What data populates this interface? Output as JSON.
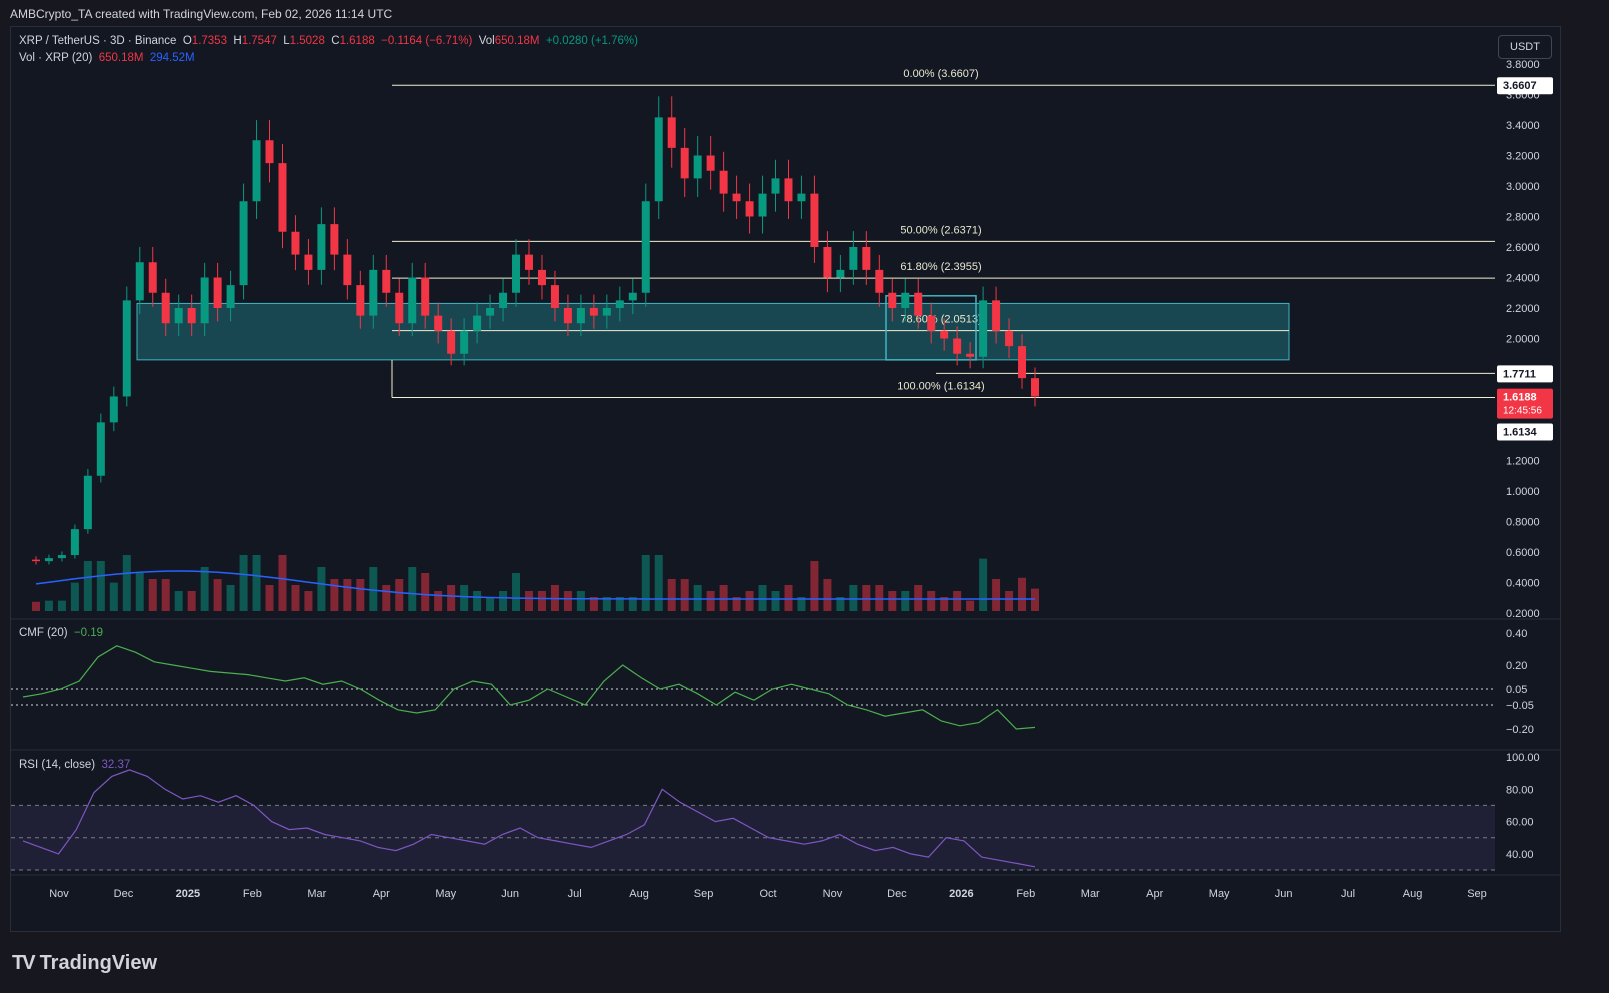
{
  "header": {
    "attribution": "AMBCrypto_TA created with TradingView.com, Feb 02, 2026 11:14 UTC"
  },
  "legend": {
    "symbol": "XRP / TetherUS · 3D · Binance",
    "o_label": "O",
    "o": "1.7353",
    "h_label": "H",
    "h": "1.7547",
    "l_label": "L",
    "l": "1.5028",
    "c_label": "C",
    "c": "1.6188",
    "change": "−0.1164 (−6.71%)",
    "vol_label": "Vol",
    "vol": "650.18M",
    "vol_change": "+0.0280 (+1.76%)",
    "vol_row_label": "Vol · XRP (20)",
    "vol_row_v1": "650.18M",
    "vol_row_v2": "294.52M",
    "cmf_label": "CMF (20)",
    "cmf_value": "−0.19",
    "rsi_label": "RSI (14, close)",
    "rsi_value": "32.37"
  },
  "currency_button": "USDT",
  "brand": {
    "name": "TradingView"
  },
  "colors": {
    "up": "#089981",
    "down": "#f23645",
    "fib": "#f0f0d0",
    "zone": "#1f6f78",
    "vol_ma": "#2962ff",
    "cmf": "#4caf50",
    "rsi": "#7e57c2"
  },
  "chart_data": [
    {
      "type": "candlestick",
      "title": "XRP / TetherUS · 3D · Binance",
      "price_axis": {
        "ticks": [
          "3.8000",
          "3.6000",
          "3.4000",
          "3.2000",
          "3.0000",
          "2.8000",
          "2.6000",
          "2.4000",
          "2.2000",
          "2.0000",
          "1.8000",
          "1.6000",
          "1.4000",
          "1.2000",
          "1.0000",
          "0.8000",
          "0.6000",
          "0.4000",
          "0.2000"
        ],
        "ylim": [
          0.2,
          3.8
        ]
      },
      "time_axis": [
        "Nov",
        "Dec",
        "2025",
        "Feb",
        "Mar",
        "Apr",
        "May",
        "Jun",
        "Jul",
        "Aug",
        "Sep",
        "Oct",
        "Nov",
        "Dec",
        "2026",
        "Feb",
        "Mar",
        "Apr",
        "May",
        "Jun",
        "Jul",
        "Aug",
        "Sep"
      ],
      "fib_levels": [
        {
          "label": "0.00% (3.6607)",
          "value": 3.6607
        },
        {
          "label": "50.00% (2.6371)",
          "value": 2.6371
        },
        {
          "label": "61.80% (2.3955)",
          "value": 2.3955
        },
        {
          "label": "78.60% (2.0513)",
          "value": 2.0513
        },
        {
          "label": "100.00% (1.6134)",
          "value": 1.6134
        }
      ],
      "zone": {
        "top": 2.23,
        "bottom": 1.86
      },
      "price_tags": {
        "top": "3.6607",
        "level": "1.7711",
        "current": "1.6188",
        "countdown": "12:45:56",
        "low": "1.6134"
      },
      "close_path": [
        [
          "Nov",
          0.55
        ],
        [
          "Nov",
          0.54
        ],
        [
          "Nov",
          0.56
        ],
        [
          "Nov",
          0.58
        ],
        [
          "Nov",
          0.75
        ],
        [
          "Nov",
          1.1
        ],
        [
          "Nov",
          1.45
        ],
        [
          "Dec",
          1.62
        ],
        [
          "Dec",
          2.25
        ],
        [
          "Dec",
          2.5
        ],
        [
          "Dec",
          2.3
        ],
        [
          "Dec",
          2.1
        ],
        [
          "Dec",
          2.2
        ],
        [
          "2025",
          2.1
        ],
        [
          "2025",
          2.4
        ],
        [
          "2025",
          2.2
        ],
        [
          "2025",
          2.35
        ],
        [
          "2025",
          2.9
        ],
        [
          "2025",
          3.3
        ],
        [
          "2025",
          3.15
        ],
        [
          "Feb",
          2.7
        ],
        [
          "Feb",
          2.55
        ],
        [
          "Feb",
          2.45
        ],
        [
          "Feb",
          2.75
        ],
        [
          "Feb",
          2.55
        ],
        [
          "Feb",
          2.35
        ],
        [
          "Mar",
          2.15
        ],
        [
          "Mar",
          2.45
        ],
        [
          "Mar",
          2.3
        ],
        [
          "Mar",
          2.1
        ],
        [
          "Mar",
          2.4
        ],
        [
          "Mar",
          2.15
        ],
        [
          "Apr",
          2.05
        ],
        [
          "Apr",
          1.9
        ],
        [
          "Apr",
          2.05
        ],
        [
          "Apr",
          2.15
        ],
        [
          "Apr",
          2.2
        ],
        [
          "May",
          2.3
        ],
        [
          "May",
          2.55
        ],
        [
          "May",
          2.45
        ],
        [
          "May",
          2.35
        ],
        [
          "May",
          2.2
        ],
        [
          "Jun",
          2.1
        ],
        [
          "Jun",
          2.2
        ],
        [
          "Jun",
          2.15
        ],
        [
          "Jun",
          2.2
        ],
        [
          "Jun",
          2.25
        ],
        [
          "Jul",
          2.3
        ],
        [
          "Jul",
          2.9
        ],
        [
          "Jul",
          3.45
        ],
        [
          "Jul",
          3.25
        ],
        [
          "Jul",
          3.05
        ],
        [
          "Aug",
          3.2
        ],
        [
          "Aug",
          3.1
        ],
        [
          "Aug",
          2.95
        ],
        [
          "Aug",
          2.9
        ],
        [
          "Sep",
          2.8
        ],
        [
          "Sep",
          2.95
        ],
        [
          "Sep",
          3.05
        ],
        [
          "Sep",
          2.9
        ],
        [
          "Sep",
          2.95
        ],
        [
          "Oct",
          2.6
        ],
        [
          "Oct",
          2.4
        ],
        [
          "Oct",
          2.45
        ],
        [
          "Oct",
          2.6
        ],
        [
          "Oct",
          2.45
        ],
        [
          "Nov",
          2.3
        ],
        [
          "Nov",
          2.2
        ],
        [
          "Nov",
          2.3
        ],
        [
          "Nov",
          2.15
        ],
        [
          "Nov",
          2.05
        ],
        [
          "Dec",
          2.0
        ],
        [
          "Dec",
          1.9
        ],
        [
          "Dec",
          1.88
        ],
        [
          "2026",
          2.25
        ],
        [
          "2026",
          2.05
        ],
        [
          "2026",
          1.95
        ],
        [
          "Feb",
          1.74
        ],
        [
          "Feb",
          1.62
        ]
      ],
      "volume_panel": {
        "series": [
          {
            "name": "Vol · XRP (20)",
            "last": "650.18M"
          },
          {
            "name": "MA",
            "last": "294.52M"
          }
        ]
      }
    },
    {
      "type": "line",
      "title": "CMF (20)",
      "value": -0.19,
      "y_ticks": [
        "0.40",
        "0.20",
        "0.05",
        "−0.05",
        "−0.20"
      ],
      "ylim": [
        -0.3,
        0.45
      ],
      "reference_lines": [
        0.05,
        -0.05
      ],
      "values": [
        0.0,
        0.02,
        0.05,
        0.1,
        0.25,
        0.32,
        0.28,
        0.22,
        0.2,
        0.18,
        0.16,
        0.15,
        0.14,
        0.12,
        0.1,
        0.12,
        0.08,
        0.1,
        0.05,
        -0.02,
        -0.08,
        -0.1,
        -0.08,
        0.05,
        0.1,
        0.08,
        -0.05,
        -0.02,
        0.05,
        0.0,
        -0.05,
        0.1,
        0.2,
        0.12,
        0.05,
        0.08,
        0.02,
        -0.05,
        0.03,
        -0.02,
        0.05,
        0.08,
        0.05,
        0.02,
        -0.05,
        -0.08,
        -0.12,
        -0.1,
        -0.08,
        -0.15,
        -0.18,
        -0.16,
        -0.08,
        -0.2,
        -0.19
      ]
    },
    {
      "type": "line",
      "title": "RSI (14, close)",
      "value": 32.37,
      "y_ticks": [
        "100.00",
        "80.00",
        "60.00",
        "40.00"
      ],
      "ylim": [
        30,
        100
      ],
      "bands": [
        70,
        50,
        30
      ],
      "values": [
        48,
        44,
        40,
        55,
        78,
        88,
        92,
        88,
        80,
        74,
        76,
        72,
        76,
        70,
        60,
        55,
        56,
        52,
        50,
        48,
        44,
        42,
        46,
        52,
        50,
        48,
        46,
        52,
        56,
        50,
        48,
        46,
        44,
        48,
        52,
        58,
        80,
        72,
        66,
        60,
        62,
        56,
        50,
        48,
        46,
        48,
        52,
        46,
        42,
        44,
        40,
        38,
        50,
        48,
        38,
        36,
        34,
        32
      ]
    }
  ]
}
